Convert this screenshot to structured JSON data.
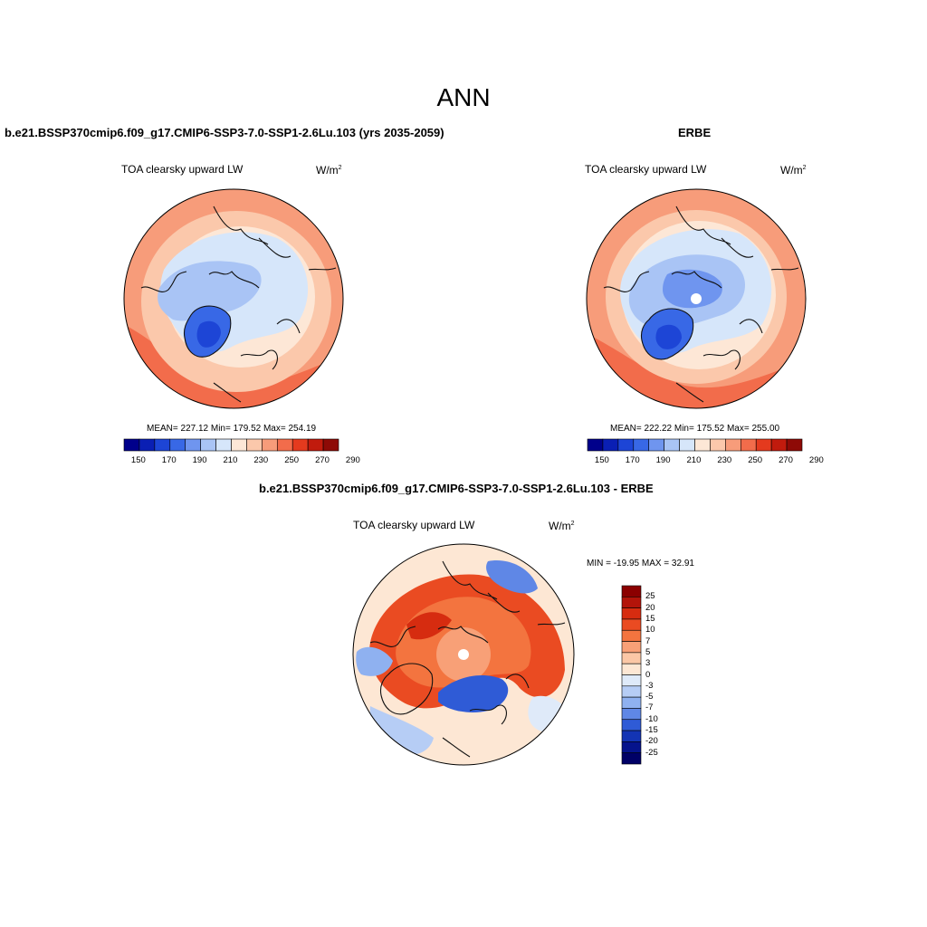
{
  "main_title": "ANN",
  "panels": [
    {
      "title": "b.e21.BSSP370cmip6.f09_g17.CMIP6-SSP3-7.0-SSP1-2.6Lu.103 (yrs 2035-2059)",
      "variable": "TOA clearsky upward LW",
      "units": "W/m",
      "units_sup": "2",
      "stats": "MEAN= 227.12  Min= 179.52  Max= 254.19",
      "colorbar_ticks": [
        "150",
        "170",
        "190",
        "210",
        "230",
        "250",
        "270",
        "290"
      ]
    },
    {
      "title": "ERBE",
      "variable": "TOA clearsky upward LW",
      "units": "W/m",
      "units_sup": "2",
      "stats": "MEAN= 222.22  Min= 175.52  Max= 255.00",
      "colorbar_ticks": [
        "150",
        "170",
        "190",
        "210",
        "230",
        "250",
        "270",
        "290"
      ]
    },
    {
      "title": "b.e21.BSSP370cmip6.f09_g17.CMIP6-SSP3-7.0-SSP1-2.6Lu.103 - ERBE",
      "variable": "TOA clearsky upward LW",
      "units": "W/m",
      "units_sup": "2",
      "stats": "MIN = -19.95 MAX =  32.91",
      "colorbar_ticks": [
        "25",
        "20",
        "15",
        "10",
        "7",
        "5",
        "3",
        "0",
        "-3",
        "-5",
        "-7",
        "-10",
        "-15",
        "-20",
        "-25"
      ]
    }
  ],
  "colors": {
    "abs_scale": [
      "#00008b",
      "#0a1fb4",
      "#1d45d6",
      "#3868e6",
      "#6f95ef",
      "#a9c4f5",
      "#d6e6fa",
      "#fde7d6",
      "#fbc8ab",
      "#f79c7a",
      "#f26c4b",
      "#e43a1e",
      "#c11b0d",
      "#8e0a06"
    ],
    "diff_scale": [
      "#8b0000",
      "#b3140a",
      "#d62c10",
      "#ea4b22",
      "#f3743f",
      "#f8a077",
      "#fbc7a6",
      "#fde7d4",
      "#dfeaf9",
      "#b6cdf5",
      "#8fb1f0",
      "#5f87e6",
      "#2f5bd6",
      "#1334b4",
      "#05138c",
      "#000066"
    ],
    "coast": "#111111"
  }
}
